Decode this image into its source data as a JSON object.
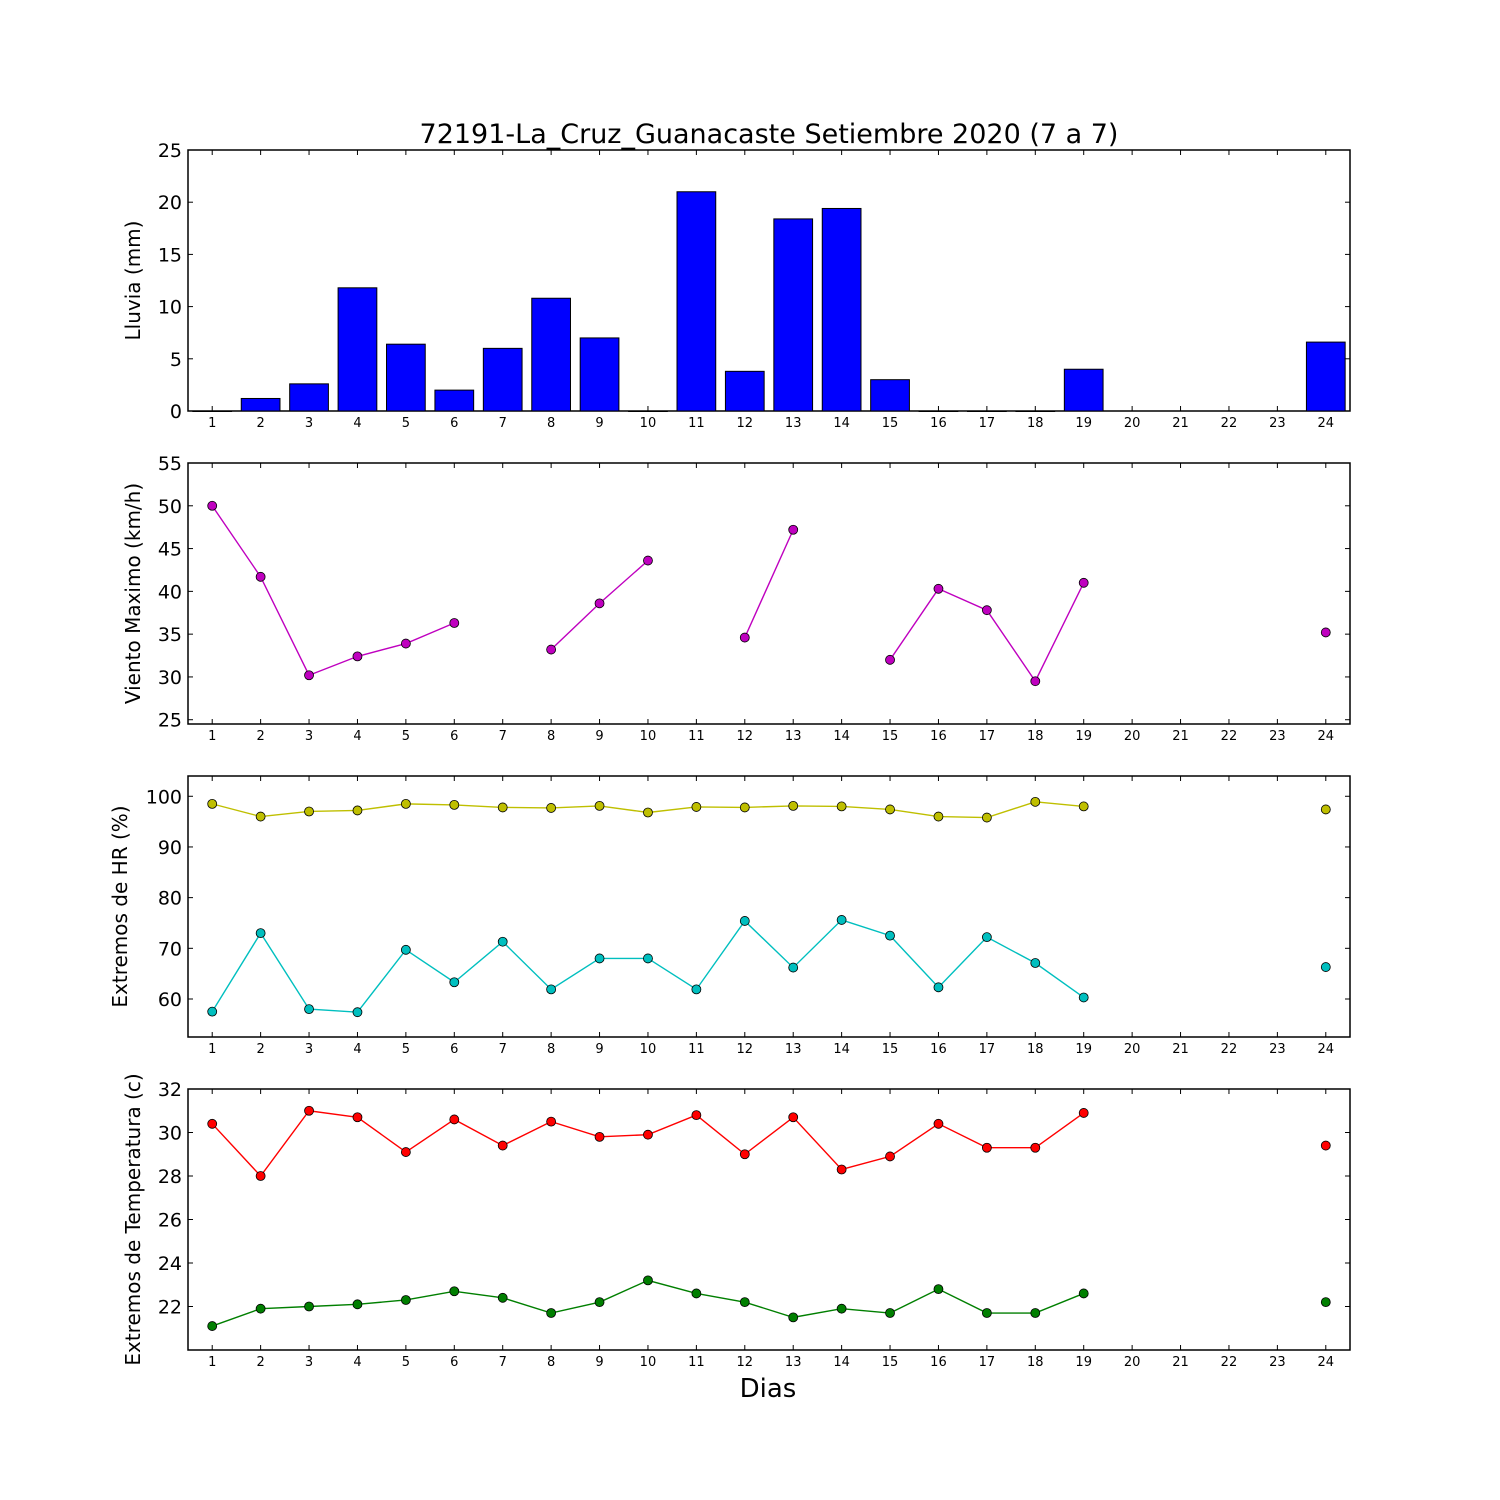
{
  "figure": {
    "title": "72191-La_Cruz_Guanacaste Setiembre 2020  (7 a 7)",
    "xlabel": "Dias"
  },
  "chart_data": [
    {
      "type": "bar",
      "ylabel": "Lluvia (mm)",
      "ylim": [
        0,
        25
      ],
      "yticks": [
        0,
        5,
        10,
        15,
        20,
        25
      ],
      "categories": [
        "1",
        "2",
        "3",
        "4",
        "5",
        "6",
        "7",
        "8",
        "9",
        "10",
        "11",
        "12",
        "13",
        "14",
        "15",
        "16",
        "17",
        "18",
        "19",
        "20",
        "21",
        "22",
        "23",
        "24"
      ],
      "values": [
        0,
        1.2,
        2.6,
        11.8,
        6.4,
        2.0,
        6.0,
        10.8,
        7.0,
        0,
        21.0,
        3.8,
        18.4,
        19.4,
        3.0,
        0,
        0,
        0,
        4.0,
        null,
        null,
        null,
        null,
        6.6
      ],
      "color": "#0000ff"
    },
    {
      "type": "line",
      "ylabel": "Viento Maximo (km/h)",
      "ylim": [
        24.5,
        55
      ],
      "yticks": [
        25,
        30,
        35,
        40,
        45,
        50,
        55
      ],
      "categories": [
        "1",
        "2",
        "3",
        "4",
        "5",
        "6",
        "7",
        "8",
        "9",
        "10",
        "11",
        "12",
        "13",
        "14",
        "15",
        "16",
        "17",
        "18",
        "19",
        "20",
        "21",
        "22",
        "23",
        "24"
      ],
      "series": [
        {
          "color": "#bf00bf",
          "values": [
            50.0,
            41.7,
            30.2,
            32.4,
            33.9,
            36.3,
            null,
            33.2,
            38.6,
            43.6,
            null,
            34.6,
            47.2,
            null,
            32.0,
            40.3,
            37.8,
            29.5,
            41.0,
            null,
            null,
            null,
            null,
            35.2
          ]
        }
      ]
    },
    {
      "type": "line",
      "ylabel": "Extremos de HR (%)",
      "ylim": [
        52.5,
        104
      ],
      "yticks": [
        60,
        70,
        80,
        90,
        100
      ],
      "categories": [
        "1",
        "2",
        "3",
        "4",
        "5",
        "6",
        "7",
        "8",
        "9",
        "10",
        "11",
        "12",
        "13",
        "14",
        "15",
        "16",
        "17",
        "18",
        "19",
        "20",
        "21",
        "22",
        "23",
        "24"
      ],
      "series": [
        {
          "color": "#bfbf00",
          "values": [
            98.5,
            96.0,
            97.0,
            97.2,
            98.5,
            98.3,
            97.8,
            97.7,
            98.1,
            96.8,
            97.9,
            97.8,
            98.1,
            98.0,
            97.4,
            96.0,
            95.8,
            98.9,
            98.0,
            null,
            null,
            null,
            null,
            97.4
          ]
        },
        {
          "color": "#00bfbf",
          "values": [
            57.5,
            73.0,
            58.0,
            57.4,
            69.7,
            63.3,
            71.3,
            61.9,
            68.0,
            68.0,
            61.9,
            75.4,
            66.2,
            75.6,
            72.5,
            62.3,
            72.2,
            67.1,
            60.3,
            null,
            null,
            null,
            null,
            66.3
          ]
        }
      ]
    },
    {
      "type": "line",
      "ylabel": "Extremos de Temperatura (c)",
      "ylim": [
        20,
        32
      ],
      "yticks": [
        22,
        24,
        26,
        28,
        30,
        32
      ],
      "categories": [
        "1",
        "2",
        "3",
        "4",
        "5",
        "6",
        "7",
        "8",
        "9",
        "10",
        "11",
        "12",
        "13",
        "14",
        "15",
        "16",
        "17",
        "18",
        "19",
        "20",
        "21",
        "22",
        "23",
        "24"
      ],
      "series": [
        {
          "color": "#ff0000",
          "values": [
            30.4,
            28.0,
            31.0,
            30.7,
            29.1,
            30.6,
            29.4,
            30.5,
            29.8,
            29.9,
            30.8,
            29.0,
            30.7,
            28.3,
            28.9,
            30.4,
            29.3,
            29.3,
            30.9,
            null,
            null,
            null,
            null,
            29.4
          ]
        },
        {
          "color": "#007f00",
          "values": [
            21.1,
            21.9,
            22.0,
            22.1,
            22.3,
            22.7,
            22.4,
            21.7,
            22.2,
            23.2,
            22.6,
            22.2,
            21.5,
            21.9,
            21.7,
            22.8,
            21.7,
            21.7,
            22.6,
            null,
            null,
            null,
            null,
            22.2
          ]
        }
      ]
    }
  ]
}
